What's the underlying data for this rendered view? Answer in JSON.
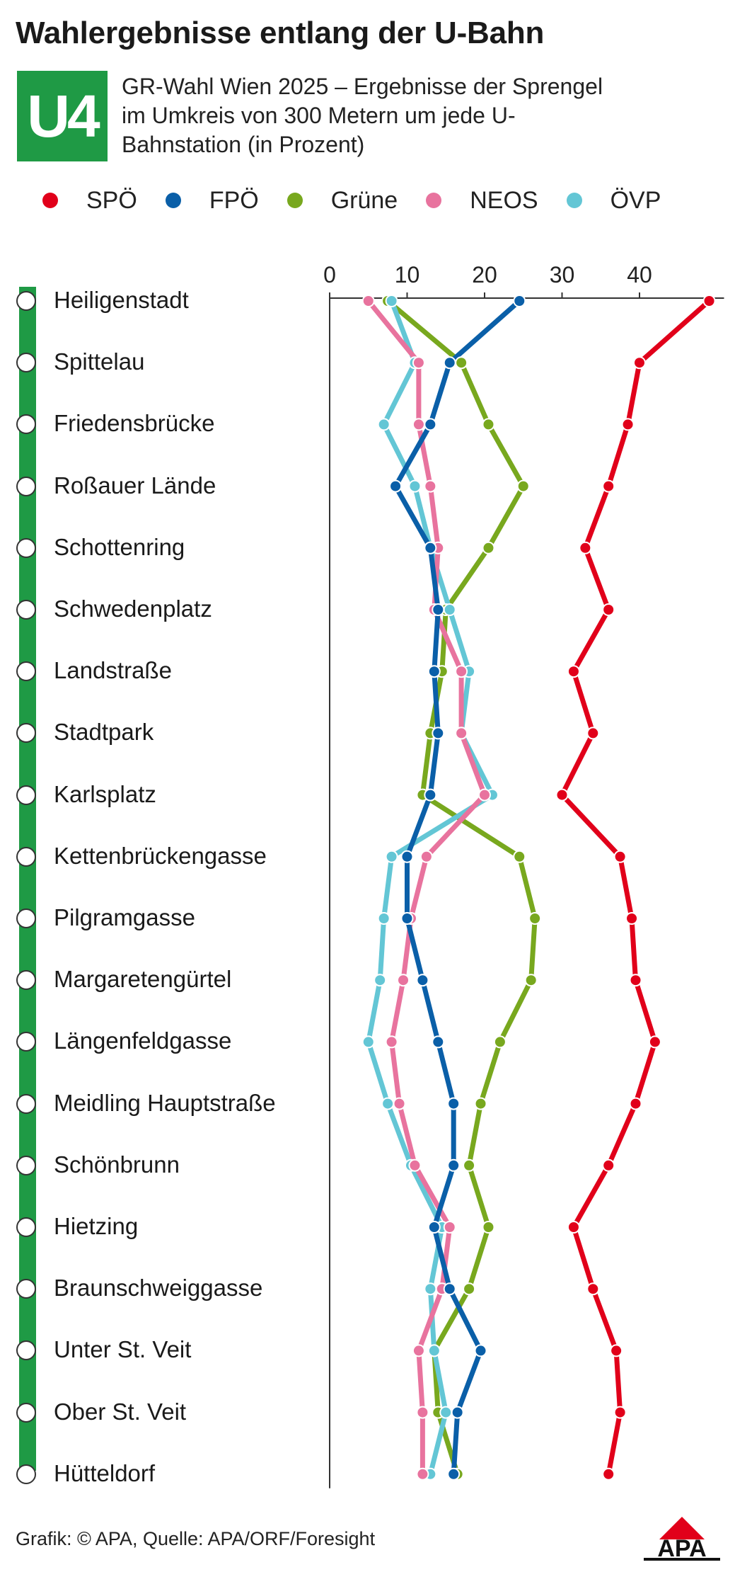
{
  "title": "Wahlergebnisse entlang der U-Bahn",
  "badge": "U4",
  "subtitle": "GR-Wahl Wien 2025 – Ergebnisse der Sprengel im Umkreis von 300 Metern um jede U-Bahnstation (in Prozent)",
  "footer": "Grafik: © APA, Quelle: APA/ORF/Foresight",
  "logo_text": "APA",
  "colors": {
    "line": "#1f9a45",
    "SPÖ": "#e1001a",
    "FPÖ": "#0a5fa8",
    "Grüne": "#78a81e",
    "NEOS": "#e8739e",
    "ÖVP": "#63c6d5"
  },
  "chart_data": {
    "type": "line",
    "orientation": "horizontal-values",
    "categories": [
      "Heiligenstadt",
      "Spittelau",
      "Friedensbrücke",
      "Roßauer Lände",
      "Schottenring",
      "Schwedenplatz",
      "Landstraße",
      "Stadtpark",
      "Karlsplatz",
      "Kettenbrückengasse",
      "Pilgramgasse",
      "Margaretengürtel",
      "Längenfeldgasse",
      "Meidling Hauptstraße",
      "Schönbrunn",
      "Hietzing",
      "Braunschweiggasse",
      "Unter St. Veit",
      "Ober St. Veit",
      "Hütteldorf"
    ],
    "xlim": [
      0,
      50
    ],
    "xticks": [
      0,
      10,
      20,
      30,
      40
    ],
    "legend_position": "top",
    "series": [
      {
        "name": "SPÖ",
        "values": [
          49,
          40,
          38.5,
          36,
          33,
          36,
          31.5,
          34,
          30,
          37.5,
          39,
          39.5,
          42,
          39.5,
          36,
          31.5,
          34,
          37,
          37.5,
          36
        ]
      },
      {
        "name": "FPÖ",
        "values": [
          24.5,
          15.5,
          13,
          8.5,
          13,
          14,
          13.5,
          14,
          13,
          10,
          10,
          12,
          14,
          16,
          16,
          13.5,
          15.5,
          19.5,
          16.5,
          16
        ]
      },
      {
        "name": "Grüne",
        "values": [
          7.5,
          17,
          20.5,
          25,
          20.5,
          15,
          14.5,
          13,
          12,
          24.5,
          26.5,
          26,
          22,
          19.5,
          18,
          20.5,
          18,
          13.5,
          14,
          16.5
        ]
      },
      {
        "name": "NEOS",
        "values": [
          5,
          11.5,
          11.5,
          13,
          14,
          13.5,
          17,
          17,
          20,
          12.5,
          10.5,
          9.5,
          8,
          9,
          11,
          15.5,
          14.5,
          11.5,
          12,
          12
        ]
      },
      {
        "name": "ÖVP",
        "values": [
          8,
          11,
          7,
          11,
          13,
          15.5,
          18,
          17,
          21,
          8,
          7,
          6.5,
          5,
          7.5,
          10.5,
          14.5,
          13,
          13.5,
          15,
          13
        ]
      }
    ]
  }
}
